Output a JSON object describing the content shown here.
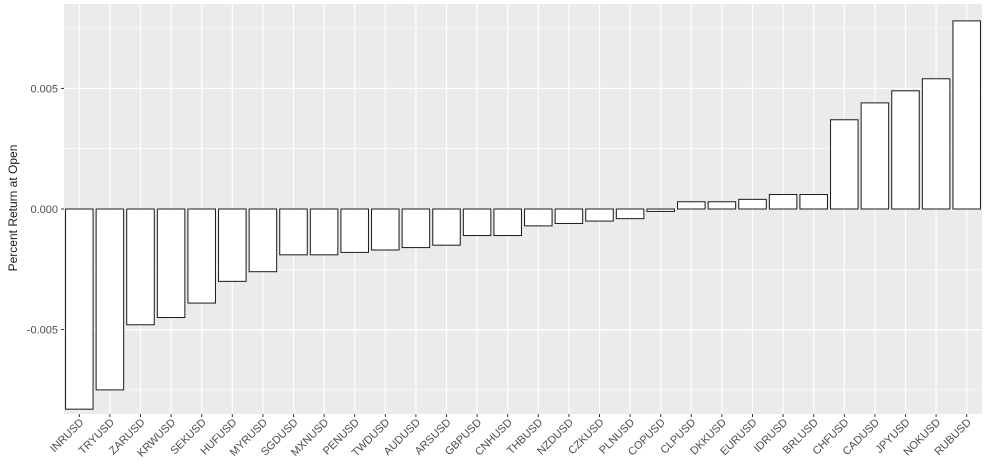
{
  "chart_data": {
    "type": "bar",
    "title": "",
    "xlabel": "",
    "ylabel": "Percent Return at Open",
    "ylim": [
      -0.0085,
      0.0085
    ],
    "y_ticks": [
      -0.005,
      0.0,
      0.005
    ],
    "y_tick_labels": [
      "-0.005",
      "0.000",
      "0.005"
    ],
    "grid": true,
    "legend": "none",
    "colors": {
      "panel": "#ebebeb",
      "grid_major": "#ffffff",
      "bar_fill": "#ffffff",
      "bar_stroke": "#1a1a1a"
    },
    "categories": [
      "INRUSD",
      "TRYUSD",
      "ZARUSD",
      "KRWUSD",
      "SEKUSD",
      "HUFUSD",
      "MYRUSD",
      "SGDUSD",
      "MXNUSD",
      "PENUSD",
      "TWDUSD",
      "AUDUSD",
      "ARSUSD",
      "GBPUSD",
      "CNHUSD",
      "THBUSD",
      "NZDUSD",
      "CZKUSD",
      "PLNUSD",
      "COPUSD",
      "CLPUSD",
      "DKKUSD",
      "EURUSD",
      "IDRUSD",
      "BRLUSD",
      "CHFUSD",
      "CADUSD",
      "JPYUSD",
      "NOKUSD",
      "RUBUSD"
    ],
    "values": [
      -0.0083,
      -0.0075,
      -0.0048,
      -0.0045,
      -0.0039,
      -0.003,
      -0.0026,
      -0.0019,
      -0.0019,
      -0.0018,
      -0.0017,
      -0.0016,
      -0.0015,
      -0.0011,
      -0.0011,
      -0.0007,
      -0.0006,
      -0.0005,
      -0.0004,
      -0.0001,
      0.0003,
      0.0003,
      0.0004,
      0.0006,
      0.0006,
      0.0037,
      0.0044,
      0.0049,
      0.0054,
      0.0078
    ]
  }
}
